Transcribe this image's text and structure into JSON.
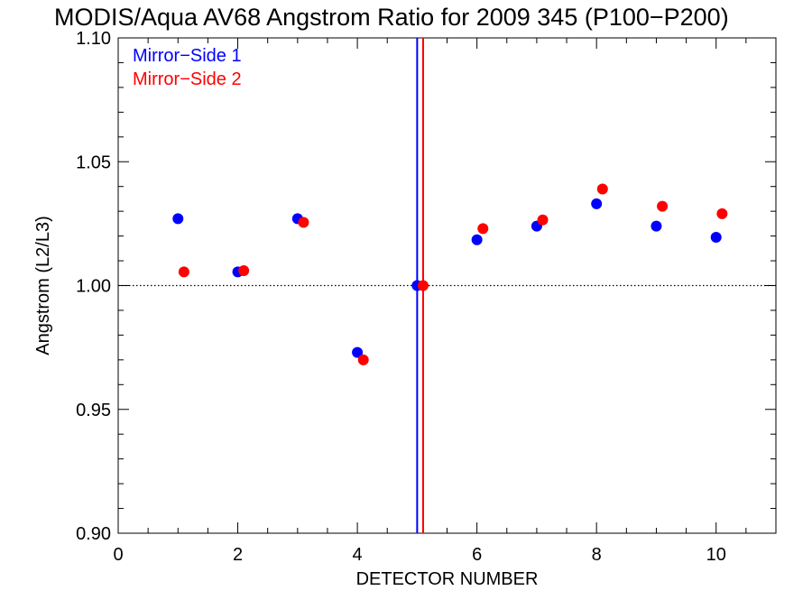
{
  "chart_data": {
    "type": "scatter",
    "title": "MODIS/Aqua AV68 Angstrom Ratio for 2009 345 (P100−P200)",
    "xlabel": "DETECTOR NUMBER",
    "ylabel": "Angstrom (L2/L3)",
    "xlim": [
      0,
      11
    ],
    "ylim": [
      0.9,
      1.1
    ],
    "x_ticks": [
      0,
      2,
      4,
      6,
      8,
      10
    ],
    "x_tick_labels": [
      "0",
      "2",
      "4",
      "6",
      "8",
      "10"
    ],
    "y_ticks": [
      0.9,
      0.95,
      1.0,
      1.05,
      1.1
    ],
    "y_tick_labels": [
      "0.90",
      "0.95",
      "1.00",
      "1.05",
      "1.10"
    ],
    "reference_line_y": 1.0,
    "legend_position": "top-left",
    "series": [
      {
        "name": "Mirror−Side 1",
        "color": "#0000ff",
        "x": [
          1,
          2,
          3,
          4,
          5,
          6,
          7,
          8,
          9,
          10
        ],
        "y": [
          1.027,
          1.0055,
          1.027,
          0.973,
          1.0,
          1.0185,
          1.024,
          1.033,
          1.024,
          1.0195
        ],
        "vertical_line_x": 5.0
      },
      {
        "name": "Mirror−Side 2",
        "color": "#ff0000",
        "x": [
          1.1,
          2.1,
          3.1,
          4.1,
          5.1,
          6.1,
          7.1,
          8.1,
          9.1,
          10.1
        ],
        "y": [
          1.0055,
          1.006,
          1.0255,
          0.97,
          1.0,
          1.023,
          1.0265,
          1.039,
          1.032,
          1.029
        ],
        "vertical_line_x": 5.1
      }
    ]
  }
}
